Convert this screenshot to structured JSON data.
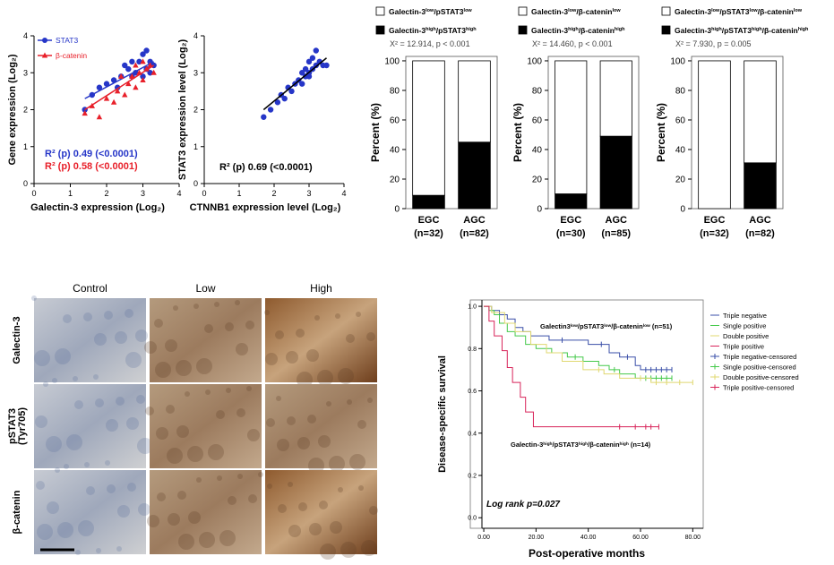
{
  "chart_data": [
    {
      "type": "scatter",
      "xlabel": "Galectin-3 expression (Log₂)",
      "ylabel": "Gene expression (Log₂)",
      "xlim": [
        0,
        4
      ],
      "ylim": [
        0,
        4
      ],
      "xticks": [
        0,
        1,
        2,
        3,
        4
      ],
      "yticks": [
        0,
        1,
        2,
        3,
        4
      ],
      "series": [
        {
          "name": "STAT3",
          "color": "#2636c8",
          "marker": "circle",
          "x": [
            1.4,
            1.6,
            1.8,
            2.0,
            2.2,
            2.4,
            2.5,
            2.6,
            2.7,
            2.8,
            2.9,
            3.0,
            3.0,
            3.1,
            3.1,
            3.2,
            3.3,
            2.3,
            2.7,
            3.2
          ],
          "values": [
            2.0,
            2.4,
            2.6,
            2.7,
            2.8,
            2.9,
            3.2,
            3.1,
            3.3,
            3.0,
            3.3,
            3.5,
            2.9,
            3.6,
            3.1,
            3.3,
            3.2,
            2.6,
            2.9,
            3.0
          ],
          "trend": {
            "x": [
              1.4,
              3.3
            ],
            "values": [
              2.3,
              3.3
            ]
          }
        },
        {
          "name": "β-catenin",
          "color": "#e8202a",
          "marker": "triangle",
          "x": [
            1.4,
            1.6,
            1.8,
            2.0,
            2.2,
            2.3,
            2.5,
            2.6,
            2.7,
            2.8,
            2.9,
            3.0,
            3.0,
            3.1,
            3.2,
            3.3,
            2.4,
            2.8
          ],
          "values": [
            1.9,
            2.1,
            1.8,
            2.3,
            2.2,
            2.5,
            2.4,
            2.7,
            2.9,
            2.6,
            3.0,
            3.3,
            2.8,
            3.1,
            3.2,
            3.0,
            2.9,
            3.2
          ],
          "trend": {
            "x": [
              1.4,
              3.3
            ],
            "values": [
              2.0,
              3.2
            ]
          }
        }
      ],
      "annotations": [
        {
          "text": "R² (p) 0.49 (<0.0001)",
          "color": "#2636c8"
        },
        {
          "text": "R² (p) 0.58 (<0.0001)",
          "color": "#e8202a"
        }
      ]
    },
    {
      "type": "scatter",
      "xlabel": "CTNNB1 expression level (Log₂)",
      "ylabel": "STAT3 expression level (Log₂)",
      "xlim": [
        0,
        4
      ],
      "ylim": [
        0,
        4
      ],
      "xticks": [
        0,
        1,
        2,
        3,
        4
      ],
      "yticks": [
        0,
        1,
        2,
        3,
        4
      ],
      "series": [
        {
          "color": "#2636c8",
          "marker": "circle",
          "x": [
            1.7,
            1.9,
            2.1,
            2.3,
            2.4,
            2.5,
            2.6,
            2.7,
            2.8,
            2.9,
            2.9,
            3.0,
            3.0,
            3.1,
            3.1,
            3.2,
            3.2,
            3.3,
            3.4,
            3.5,
            2.8,
            3.0,
            2.2
          ],
          "values": [
            1.8,
            2.0,
            2.2,
            2.3,
            2.6,
            2.5,
            2.7,
            2.8,
            3.0,
            2.9,
            3.1,
            3.0,
            3.3,
            3.1,
            3.4,
            3.2,
            3.6,
            3.3,
            3.2,
            3.2,
            2.7,
            2.9,
            2.4
          ],
          "trend": {
            "x": [
              1.7,
              3.5
            ],
            "values": [
              2.0,
              3.4
            ]
          }
        }
      ],
      "annotations": [
        {
          "text": "R² (p) 0.69 (<0.0001)",
          "color": "#000000"
        }
      ]
    },
    {
      "type": "bar",
      "ylabel": "Percent (%)",
      "stat": "X² = 12.914, p < 0.001",
      "categories": [
        "EGC",
        "AGC"
      ],
      "category_notes": [
        "(n=32)",
        "(n=82)"
      ],
      "ylim": [
        0,
        103
      ],
      "yticks": [
        0,
        20,
        40,
        60,
        80,
        100
      ],
      "series": [
        {
          "name": [
            "Galectin-3",
            "low",
            "/pSTAT3",
            "low"
          ],
          "color": "#ffffff",
          "values": [
            91,
            55
          ]
        },
        {
          "name": [
            "Galectin-3",
            "high",
            "/pSTAT3",
            "high"
          ],
          "color": "#000000",
          "values": [
            9,
            45
          ]
        }
      ]
    },
    {
      "type": "bar",
      "ylabel": "Percent (%)",
      "stat": "X² = 14.460, p < 0.001",
      "categories": [
        "EGC",
        "AGC"
      ],
      "category_notes": [
        "(n=30)",
        "(n=85)"
      ],
      "ylim": [
        0,
        103
      ],
      "yticks": [
        0,
        20,
        40,
        60,
        80,
        100
      ],
      "series": [
        {
          "name": [
            "Galectin-3",
            "low",
            "/β-catenin",
            "low"
          ],
          "color": "#ffffff",
          "values": [
            90,
            51
          ]
        },
        {
          "name": [
            "Galectin-3",
            "high",
            "/β-catenin",
            "high"
          ],
          "color": "#000000",
          "values": [
            10,
            49
          ]
        }
      ]
    },
    {
      "type": "bar",
      "ylabel": "Percent (%)",
      "stat": "X² = 7.930, p = 0.005",
      "categories": [
        "EGC",
        "AGC"
      ],
      "category_notes": [
        "(n=32)",
        "(n=82)"
      ],
      "ylim": [
        0,
        103
      ],
      "yticks": [
        0,
        20,
        40,
        60,
        80,
        100
      ],
      "series": [
        {
          "name": [
            "Galectin-3",
            "low",
            "/pSTAT3",
            "low",
            "/β-catenin",
            "low"
          ],
          "color": "#ffffff",
          "values": [
            100,
            69
          ]
        },
        {
          "name": [
            "Galectin-3",
            "high",
            "/pSTAT3",
            "high",
            "/β-catenin",
            "high"
          ],
          "color": "#000000",
          "values": [
            0,
            31
          ]
        }
      ]
    },
    {
      "type": "survival",
      "xlabel": "Post-operative months",
      "ylabel": "Disease-specific survival",
      "xlim": [
        -0.7,
        84
      ],
      "ylim": [
        -0.05,
        1.03
      ],
      "xticks": [
        {
          "value": 0,
          "label": "0.00"
        },
        {
          "value": 20,
          "label": "20.00"
        },
        {
          "value": 40,
          "label": "40.00"
        },
        {
          "value": 60,
          "label": "60.00"
        },
        {
          "value": 80,
          "label": "80.00"
        }
      ],
      "yticks": [
        {
          "value": 0,
          "label": "0.0"
        },
        {
          "value": 0.2,
          "label": "0.2"
        },
        {
          "value": 0.4,
          "label": "0.4"
        },
        {
          "value": 0.6,
          "label": "0.6"
        },
        {
          "value": 0.8,
          "label": "0.8"
        },
        {
          "value": 1,
          "label": "1.0"
        }
      ],
      "series": [
        {
          "name": "Triple negative",
          "censored_name": "Triple negative-censored",
          "color": "#3a4fa8",
          "x": [
            0,
            3,
            6,
            9,
            12,
            15,
            18,
            25,
            40,
            48,
            52,
            58,
            60
          ],
          "values": [
            1,
            0.98,
            0.96,
            0.94,
            0.9,
            0.88,
            0.86,
            0.84,
            0.82,
            0.78,
            0.76,
            0.72,
            0.7
          ],
          "censored": [
            30,
            45,
            55,
            62,
            64,
            66,
            68,
            70,
            72
          ]
        },
        {
          "name": "Single positive",
          "censored_name": "Single positive-censored",
          "color": "#44c94a",
          "x": [
            0,
            2,
            4,
            6,
            9,
            12,
            16,
            20,
            26,
            32,
            38,
            44,
            48,
            52,
            58
          ],
          "values": [
            1,
            0.98,
            0.96,
            0.92,
            0.88,
            0.86,
            0.82,
            0.8,
            0.78,
            0.76,
            0.74,
            0.72,
            0.7,
            0.68,
            0.66
          ],
          "censored": [
            35,
            50,
            60,
            62,
            64,
            66,
            68,
            70,
            72
          ]
        },
        {
          "name": "Double positive",
          "censored_name": "Double positive-censored",
          "color": "#e0d870",
          "x": [
            0,
            3,
            8,
            12,
            18,
            24,
            30,
            38,
            46,
            52,
            64
          ],
          "values": [
            1,
            0.97,
            0.92,
            0.88,
            0.82,
            0.78,
            0.74,
            0.7,
            0.68,
            0.66,
            0.64
          ],
          "censored": [
            44,
            60,
            66,
            70,
            75,
            80
          ]
        },
        {
          "name": "Triple positive",
          "censored_name": "Triple positive-censored",
          "color": "#d8245a",
          "x": [
            0,
            2,
            4,
            7,
            9,
            11,
            14,
            16,
            19
          ],
          "values": [
            1,
            0.93,
            0.86,
            0.79,
            0.71,
            0.64,
            0.57,
            0.5,
            0.43
          ],
          "censored": [
            52,
            58,
            62,
            64,
            67
          ]
        }
      ],
      "annotations": [
        {
          "text": [
            "Galectin3",
            "low",
            "/pSTAT3",
            "low",
            "/β-catenin",
            "low",
            " (n=51)"
          ]
        },
        {
          "text": [
            "Galectin-3",
            "high",
            "/pSTAT3",
            "high",
            "/β-catenin",
            "high",
            "  (n=14)"
          ]
        },
        {
          "text": "Log rank p=0.027"
        }
      ]
    }
  ],
  "histology": {
    "columns": [
      "Control",
      "Low",
      "High"
    ],
    "rows": [
      [
        "Galectin-3"
      ],
      [
        "pSTAT3",
        "(Tyr705)"
      ],
      [
        "β-catenin"
      ]
    ]
  }
}
